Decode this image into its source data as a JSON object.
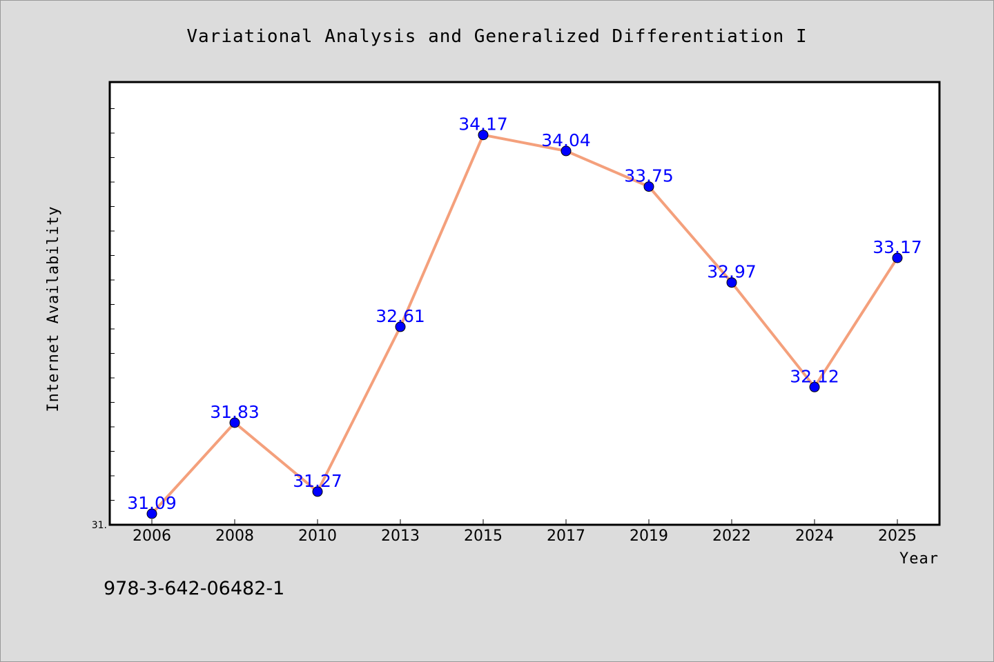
{
  "chart_data": {
    "type": "line",
    "title": "Variational Analysis and Generalized Differentiation I",
    "xlabel": "Year",
    "ylabel": "Internet Availability",
    "categories": [
      "2006",
      "2008",
      "2010",
      "2013",
      "2015",
      "2017",
      "2019",
      "2022",
      "2024",
      "2025"
    ],
    "series": [
      {
        "values": [
          31.09,
          31.83,
          31.27,
          32.61,
          34.17,
          34.04,
          33.75,
          32.97,
          32.12,
          33.17
        ],
        "labels": [
          "31.09",
          "31.83",
          "31.27",
          "32.61",
          "34.17",
          "34.04",
          "33.75",
          "32.97",
          "32.12",
          "33.17"
        ]
      }
    ],
    "ylim": [
      31.0,
      34.6
    ],
    "y_tick_label": "31.",
    "grid": false,
    "legend": "none",
    "colors": {
      "line": "#f4a07c",
      "marker": "#0000ff",
      "data_label": "#0000ff",
      "plot_background": "#ffffff",
      "page_background": "#dcdcdc"
    }
  },
  "footnote": "978-3-642-06482-1"
}
